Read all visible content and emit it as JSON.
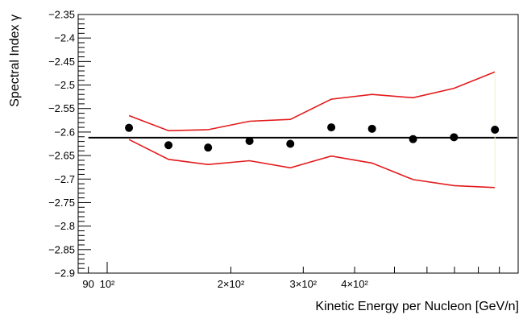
{
  "chart_data": {
    "type": "scatter",
    "title": "",
    "xlabel": "Kinetic Energy per Nucleon [GeV/n]",
    "ylabel": "Spectral Index γ",
    "x_scale": "log",
    "xlim": [
      85,
      1000
    ],
    "ylim": [
      -2.9,
      -2.35
    ],
    "x_tick_labels": [
      {
        "value": 90,
        "label": "90"
      },
      {
        "value": 100,
        "label": "10²"
      },
      {
        "value": 200,
        "label": "2×10²"
      },
      {
        "value": 300,
        "label": "3×10²"
      },
      {
        "value": 400,
        "label": "4×10²"
      }
    ],
    "y_ticks": [
      -2.9,
      -2.85,
      -2.8,
      -2.75,
      -2.7,
      -2.65,
      -2.6,
      -2.55,
      -2.5,
      -2.45,
      -2.4,
      -2.35
    ],
    "y_tick_labels": [
      "−2.9",
      "−2.85",
      "−2.8",
      "−2.75",
      "−2.7",
      "−2.65",
      "−2.6",
      "−2.55",
      "−2.5",
      "−2.45",
      "−2.4",
      "−2.35"
    ],
    "grid": false,
    "colors": {
      "points": "#000000",
      "band": "#e41a1c",
      "reference": "#000000",
      "band_edge": "#f2f2c8"
    },
    "points": {
      "name": "",
      "x": [
        113,
        141,
        176,
        222,
        279,
        351,
        441,
        555,
        698,
        878
      ],
      "y": [
        -2.591,
        -2.628,
        -2.633,
        -2.619,
        -2.625,
        -2.59,
        -2.593,
        -2.615,
        -2.611,
        -2.595
      ]
    },
    "band_upper": {
      "x": [
        113,
        141,
        176,
        222,
        279,
        351,
        441,
        555,
        698,
        878
      ],
      "y": [
        -2.565,
        -2.597,
        -2.595,
        -2.577,
        -2.573,
        -2.53,
        -2.52,
        -2.527,
        -2.507,
        -2.472
      ]
    },
    "band_lower": {
      "x": [
        113,
        141,
        176,
        222,
        279,
        351,
        441,
        555,
        698,
        878
      ],
      "y": [
        -2.616,
        -2.658,
        -2.669,
        -2.661,
        -2.676,
        -2.651,
        -2.666,
        -2.701,
        -2.714,
        -2.718
      ]
    },
    "reference_line": {
      "y": -2.612,
      "x_range": [
        90,
        995
      ]
    }
  }
}
